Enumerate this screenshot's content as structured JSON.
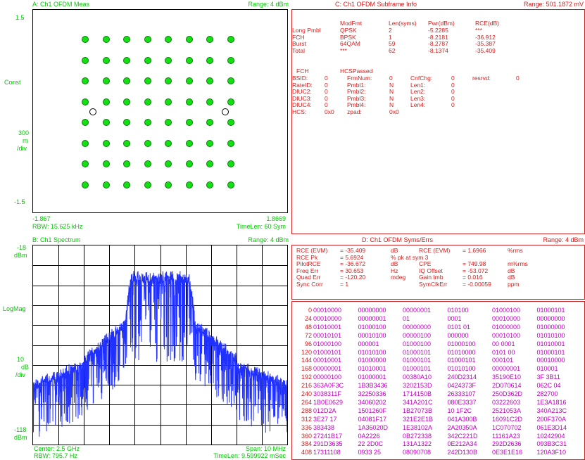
{
  "paneA": {
    "title": "A: Ch1 OFDM Meas",
    "range": "Range: 4 dBm",
    "y_top": "1.5",
    "y_mid_label": "Const",
    "y_scale": [
      "300",
      "m",
      "/div"
    ],
    "y_bottom": "-1.5",
    "x_left": "-1.867",
    "x_right": "1.8669",
    "rbw": "RBW: 15.625 kHz",
    "timelen": "TimeLen: 60 Sym",
    "colors": {
      "text": "#00c800",
      "point": "#12e012"
    }
  },
  "paneB": {
    "title": "B: Ch1 Spectrum",
    "range": "Range: 4 dBm",
    "y_top": [
      "-18",
      "dBm"
    ],
    "y_mid_label": "LogMag",
    "y_scale": [
      "10",
      "dB",
      "/div"
    ],
    "y_bottom": [
      "-118",
      "dBm"
    ],
    "center": "Center: 2.5 GHz",
    "span": "Span: 10 MHz",
    "rbw": "RBW: 795.7  Hz",
    "timelen": "TimeLen: 9.599922 mSec",
    "colors": {
      "trace": "#2030ff",
      "text": "#00c800"
    }
  },
  "paneC": {
    "title": "C: Ch1 OFDM Subframe Info",
    "range": "Range: 501.1872 mV",
    "head": [
      "ModFmt",
      "Len(syms)",
      "Pwr(dBm)",
      "RCE(dB)"
    ],
    "rows": [
      {
        "label": "Long  Pmbl",
        "mod": "QPSK",
        "len": "2",
        "pwr": "-5.2285",
        "rce": "***"
      },
      {
        "label": "FCH",
        "mod": "BPSK",
        "len": "1",
        "pwr": "-8.2181",
        "rce": "-36.912"
      },
      {
        "label": "Burst",
        "mod": "64QAM",
        "len": "59",
        "pwr": "-8.2787",
        "rce": "-35.387"
      },
      {
        "label": "Total",
        "mod": "***",
        "len": "62",
        "pwr": "-8.1374",
        "rce": "-35.409"
      }
    ],
    "fch_title": "FCH",
    "hcs_title": "HCSPassed",
    "fch": [
      {
        "k1": "BSID:",
        "v1": "0",
        "k2": "FrmNum:",
        "v2": "0",
        "k3": "CnfChg:",
        "v3": "0",
        "k4": "resrvd:",
        "v4": "0"
      },
      {
        "k1": "RateID:",
        "v1": "0",
        "k2": "Pmbl1:",
        "v2": "N",
        "k3": "Len1:",
        "v3": "0",
        "k4": "",
        "v4": ""
      },
      {
        "k1": "DIUC2:",
        "v1": "0",
        "k2": "Pmbl2:",
        "v2": "N",
        "k3": "Len2:",
        "v3": "0",
        "k4": "",
        "v4": ""
      },
      {
        "k1": "DIUC3:",
        "v1": "0",
        "k2": "Pmbl3:",
        "v2": "N",
        "k3": "Len3:",
        "v3": "0",
        "k4": "",
        "v4": ""
      },
      {
        "k1": "DIUC4:",
        "v1": "0",
        "k2": "Pmbl4:",
        "v2": "N",
        "k3": "Len4:",
        "v3": "0",
        "k4": "",
        "v4": ""
      },
      {
        "k1": "HCS:",
        "v1": "0x0",
        "k2": "zpad:",
        "v2": "0x0",
        "k3": "",
        "v3": "",
        "k4": "",
        "v4": ""
      }
    ]
  },
  "paneD": {
    "title": "D: Ch1 OFDM Syms/Errs",
    "range": "Range: 4 dBm",
    "errs": [
      {
        "k1": "RCE (EVM)",
        "v1": "= -35.409",
        "u1": "dB",
        "k2": "RCE (EVM)",
        "v2": "= 1.6966",
        "u2": "%rms"
      },
      {
        "k1": "RCE Pk",
        "v1": "= 5.6924",
        "u1": "%  pk  at  sym  3",
        "k2": "",
        "v2": "",
        "u2": ""
      },
      {
        "k1": "PilotRCE",
        "v1": "= -36.672",
        "u1": "dB",
        "k2": "CPE",
        "v2": "= 749.98",
        "u2": "m%rms"
      },
      {
        "k1": "Freq  Err",
        "v1": "= 30.653",
        "u1": "Hz",
        "k2": "IQ  Offset",
        "v2": "= -53.072",
        "u2": "dB"
      },
      {
        "k1": "Quad Err",
        "v1": "= -120.20",
        "u1": "mdeg",
        "k2": "Gain  Imb",
        "v2": "= 0.016",
        "u2": "dB"
      },
      {
        "k1": "Sync  Corr",
        "v1": "= 1",
        "u1": "",
        "k2": "SymClkErr",
        "v2": "= -0.00059",
        "u2": "ppm"
      }
    ],
    "syms": [
      {
        "idx": "0",
        "c": [
          "00010000",
          "00000000",
          "00000001",
          "010100",
          "01000100",
          "01000101"
        ]
      },
      {
        "idx": "24",
        "c": [
          "00010000",
          "00000001",
          "01",
          "0001",
          "00010000",
          "00000000"
        ]
      },
      {
        "idx": "48",
        "c": [
          "01010001",
          "01000100",
          "00000000",
          "0101  01",
          "01000000",
          "01000000"
        ]
      },
      {
        "idx": "72",
        "c": [
          "00010101",
          "00010100",
          "00000100",
          "000000",
          "00010100",
          "01010100"
        ]
      },
      {
        "idx": "96",
        "c": [
          "01000100",
          "000001",
          "01000100",
          "01000100",
          "00  0001",
          "01010001"
        ]
      },
      {
        "idx": "120",
        "c": [
          "01000101",
          "01010100",
          "01000101",
          "01010000",
          "0101  00",
          "01000101"
        ]
      },
      {
        "idx": "144",
        "c": [
          "00010001",
          "01000000",
          "01000101",
          "01000101",
          "000101",
          "00010000"
        ]
      },
      {
        "idx": "168",
        "c": [
          "00000001",
          "01010001",
          "01000101",
          "01010100",
          "00000001",
          "010001"
        ]
      },
      {
        "idx": "192",
        "c": [
          "00000100",
          "01000001",
          "00380A10",
          "240D2314",
          "35190E10",
          "3F  3B11"
        ]
      },
      {
        "idx": "216",
        "c": [
          "363A0F3C",
          "1B3B3436",
          "3202153D",
          "0424373F",
          "2D070614",
          "062C  04"
        ]
      },
      {
        "idx": "240",
        "c": [
          "3038311F",
          "32250336",
          "1714150B",
          "26333107",
          "250D362D",
          "282700"
        ]
      },
      {
        "idx": "264",
        "c": [
          "1B0E0629",
          "34060202",
          "341A201C",
          "080E3337",
          "03222603",
          "1E3A1816"
        ]
      },
      {
        "idx": "288",
        "c": [
          "012D2A",
          "1501260F",
          "1B27073B",
          "10  1F2C",
          "2521053A",
          "340A213C"
        ]
      },
      {
        "idx": "312",
        "c": [
          "3E27  17",
          "04081F17",
          "321E2E1B",
          "041A300B",
          "16091C2D",
          "200F370A"
        ]
      },
      {
        "idx": "336",
        "c": [
          "383438",
          "1A36020D",
          "1E38102A",
          "2A20350A",
          "1C070702",
          "061E3D14"
        ]
      },
      {
        "idx": "360",
        "c": [
          "27241B17",
          "0A2226",
          "0B272338",
          "342C221D",
          "11161A23",
          "10242904"
        ]
      },
      {
        "idx": "384",
        "c": [
          "291D3635",
          "22  2D0C",
          "131A1322",
          "0E212A34",
          "292D2636",
          "093B3C31"
        ]
      },
      {
        "idx": "408",
        "c": [
          "17311108",
          "0933  25",
          "08090708",
          "242D130B",
          "0E3E1E16",
          "120A3F10"
        ]
      }
    ],
    "colors": {
      "text": "#d02020",
      "syms": "#c000c0",
      "idx": "#d02020"
    }
  }
}
